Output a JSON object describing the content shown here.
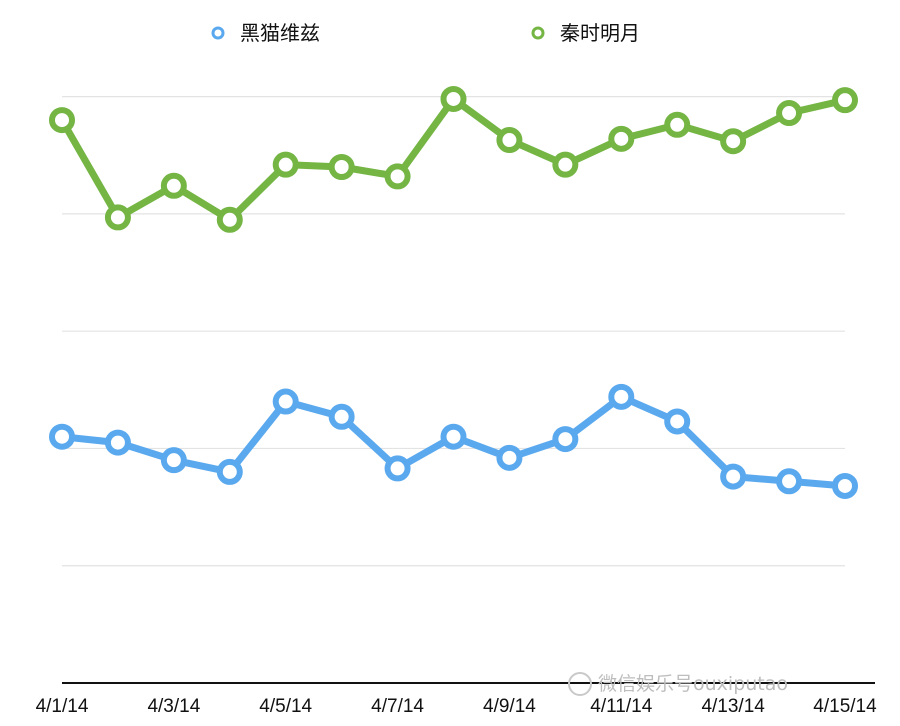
{
  "chart_data": {
    "type": "line",
    "categories": [
      "4/1/14",
      "4/2/14",
      "4/3/14",
      "4/4/14",
      "4/5/14",
      "4/6/14",
      "4/7/14",
      "4/8/14",
      "4/9/14",
      "4/10/14",
      "4/11/14",
      "4/12/14",
      "4/13/14",
      "4/14/14",
      "4/15/14"
    ],
    "tick_labels": [
      "4/1/14",
      "4/3/14",
      "4/5/14",
      "4/7/14",
      "4/9/14",
      "4/11/14",
      "4/13/14",
      "4/15/14"
    ],
    "series": [
      {
        "name": "黑猫维兹",
        "color": "#5aa9ef",
        "values": [
          5.1,
          5.05,
          4.9,
          4.8,
          5.4,
          5.27,
          4.83,
          5.1,
          4.92,
          5.08,
          5.44,
          5.23,
          4.76,
          4.72,
          4.68
        ]
      },
      {
        "name": "秦时明月",
        "color": "#74b544",
        "values": [
          7.8,
          6.97,
          7.24,
          6.95,
          7.42,
          7.4,
          7.32,
          7.98,
          7.63,
          7.42,
          7.64,
          7.76,
          7.62,
          7.86,
          7.97
        ]
      }
    ],
    "ylim": [
      3,
      8.5
    ],
    "gridlines_y": [
      4,
      5,
      6,
      7,
      8
    ],
    "grid": true,
    "legend_position": "top-center"
  },
  "watermark": {
    "text": "微信娱乐号ouxiputao"
  }
}
